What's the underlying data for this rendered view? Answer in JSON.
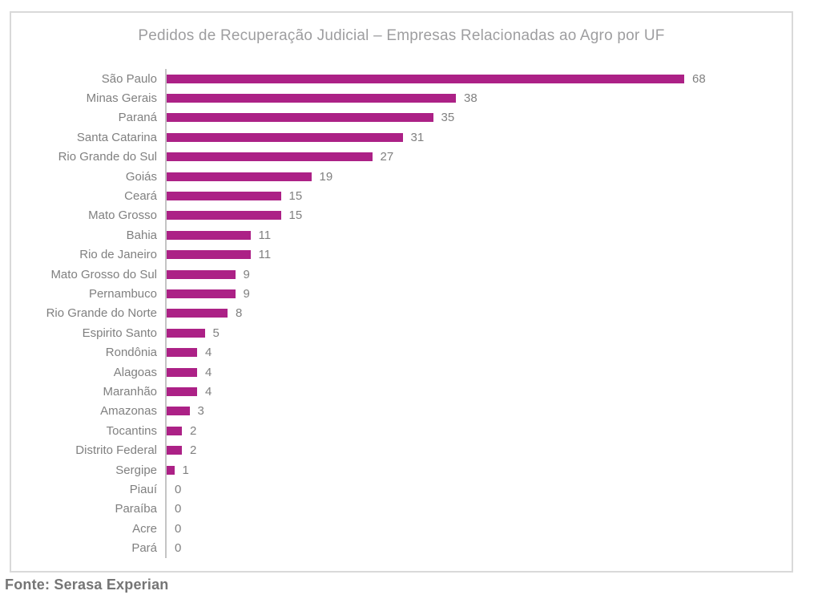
{
  "chart_data": {
    "type": "bar",
    "orientation": "horizontal",
    "title": "Pedidos de Recuperação Judicial – Empresas Relacionadas ao Agro por UF",
    "categories": [
      "São Paulo",
      "Minas Gerais",
      "Paraná",
      "Santa Catarina",
      "Rio Grande do Sul",
      "Goiás",
      "Ceará",
      "Mato Grosso",
      "Bahia",
      "Rio de Janeiro",
      "Mato Grosso do Sul",
      "Pernambuco",
      "Rio Grande do Norte",
      "Espirito Santo",
      "Rondônia",
      "Alagoas",
      "Maranhão",
      "Amazonas",
      "Tocantins",
      "Distrito Federal",
      "Sergipe",
      "Piauí",
      "Paraíba",
      "Acre",
      "Pará"
    ],
    "values": [
      68,
      38,
      35,
      31,
      27,
      19,
      15,
      15,
      11,
      11,
      9,
      9,
      8,
      5,
      4,
      4,
      4,
      3,
      2,
      2,
      1,
      0,
      0,
      0,
      0
    ],
    "xlabel": "",
    "ylabel": "",
    "xlim": [
      0,
      68
    ],
    "grid": false,
    "legend": false,
    "data_labels": true,
    "colors": {
      "bar": "#AC2186",
      "labels": "#808080",
      "title": "#9E9EA0",
      "axis": "#C4C4C4",
      "source": "#757575",
      "box_border": "#D9D9D9"
    }
  },
  "source_note": "Fonte: Serasa Experian"
}
